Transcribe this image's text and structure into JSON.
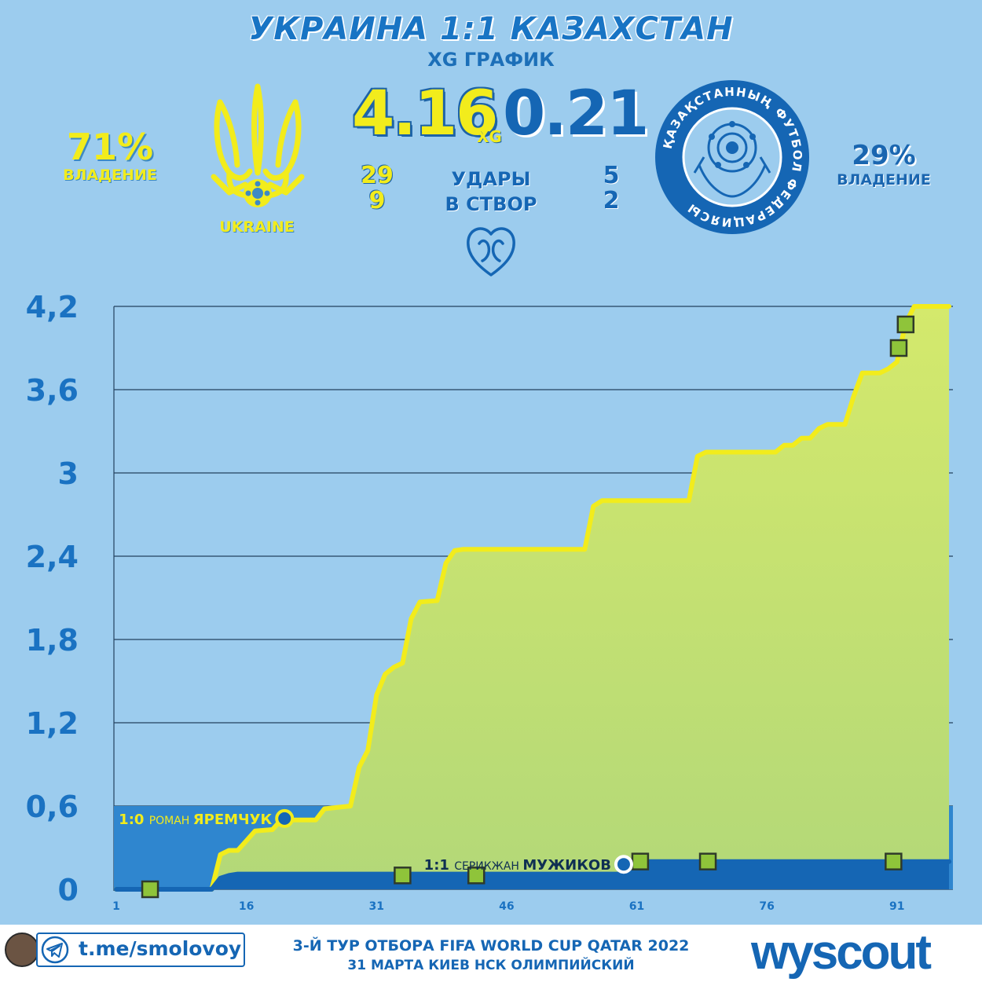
{
  "header": {
    "title": "УКРАИНА 1:1 КАЗАХСТАН",
    "subtitle": "XG ГРАФИК"
  },
  "home": {
    "name": "UKRAINE",
    "possession": "71%",
    "possession_label": "ВЛАДЕНИЕ",
    "xg": "4.16",
    "shots": "29",
    "on_target": "9",
    "color": "#f2ec1c"
  },
  "away": {
    "possession": "29%",
    "possession_label": "ВЛАДЕНИЕ",
    "xg": "0.21",
    "shots": "5",
    "on_target": "2",
    "color": "#1566b4",
    "crest_text": "ҚАЗАҚСТАННЫҢ ФУТБОЛ ФЕДЕРАЦИЯСЫ"
  },
  "stats": {
    "xg_label": "XG",
    "shots_label": "УДАРЫ",
    "on_target_label": "В СТВОР"
  },
  "chart_data": {
    "type": "line",
    "xlabel": "",
    "ylabel": "",
    "x_ticks": [
      1,
      16,
      31,
      46,
      61,
      76,
      91
    ],
    "y_ticks": [
      "0",
      "0,6",
      "1,2",
      "1,8",
      "2,4",
      "3",
      "3,6",
      "4,2"
    ],
    "y_tick_values": [
      0,
      0.6,
      1.2,
      1.8,
      2.4,
      3.0,
      3.6,
      4.2
    ],
    "xlim": [
      1,
      97
    ],
    "ylim": [
      0,
      4.2
    ],
    "grid": true,
    "series": [
      {
        "name": "Украина",
        "color": "#f2ec1c",
        "points": [
          [
            1,
            0.0
          ],
          [
            12,
            0.0
          ],
          [
            13,
            0.25
          ],
          [
            14,
            0.28
          ],
          [
            15,
            0.28
          ],
          [
            16,
            0.35
          ],
          [
            17,
            0.42
          ],
          [
            19,
            0.43
          ],
          [
            20,
            0.5
          ],
          [
            24,
            0.5
          ],
          [
            25,
            0.58
          ],
          [
            28,
            0.6
          ],
          [
            29,
            0.88
          ],
          [
            30,
            1.0
          ],
          [
            31,
            1.4
          ],
          [
            32,
            1.55
          ],
          [
            33,
            1.6
          ],
          [
            34,
            1.63
          ],
          [
            35,
            1.95
          ],
          [
            36,
            2.07
          ],
          [
            38,
            2.08
          ],
          [
            39,
            2.35
          ],
          [
            40,
            2.44
          ],
          [
            41,
            2.45
          ],
          [
            43,
            2.45
          ],
          [
            55,
            2.45
          ],
          [
            56,
            2.76
          ],
          [
            57,
            2.8
          ],
          [
            67,
            2.8
          ],
          [
            68,
            3.12
          ],
          [
            69,
            3.15
          ],
          [
            77,
            3.15
          ],
          [
            78,
            3.2
          ],
          [
            79,
            3.2
          ],
          [
            80,
            3.25
          ],
          [
            81,
            3.25
          ],
          [
            82,
            3.32
          ],
          [
            83,
            3.35
          ],
          [
            85,
            3.35
          ],
          [
            86,
            3.55
          ],
          [
            87,
            3.72
          ],
          [
            89,
            3.72
          ],
          [
            90,
            3.75
          ],
          [
            91,
            3.8
          ],
          [
            92,
            4.08
          ],
          [
            93,
            4.2
          ],
          [
            97,
            4.2
          ]
        ]
      },
      {
        "name": "Казахстан",
        "color": "#1566b4",
        "points": [
          [
            1,
            0.0
          ],
          [
            12,
            0.0
          ],
          [
            13,
            0.08
          ],
          [
            14,
            0.1
          ],
          [
            15,
            0.11
          ],
          [
            59,
            0.11
          ],
          [
            60,
            0.16
          ],
          [
            61,
            0.18
          ],
          [
            62,
            0.2
          ],
          [
            97,
            0.2
          ]
        ]
      }
    ],
    "shots_markers": [
      {
        "minute": 4.9,
        "xg": 0.0
      },
      {
        "minute": 34,
        "xg": 0.1
      },
      {
        "minute": 42.5,
        "xg": 0.1
      },
      {
        "minute": 61.4,
        "xg": 0.2
      },
      {
        "minute": 69.2,
        "xg": 0.2
      },
      {
        "minute": 90.6,
        "xg": 0.2
      },
      {
        "minute": 91.2,
        "xg": 3.9
      },
      {
        "minute": 92,
        "xg": 4.07
      }
    ],
    "goals": [
      {
        "minute": 20.4,
        "xg": 0.51,
        "score": "1:0",
        "first_name": "РОМАН",
        "last_name": "ЯРЕМЧУК",
        "team": "home"
      },
      {
        "minute": 59.5,
        "xg": 0.18,
        "score": "1:1",
        "first_name": "СЕРИКЖАН",
        "last_name": "МУЖИКОВ",
        "team": "away"
      }
    ]
  },
  "footer": {
    "telegram": "t.me/smolovoy",
    "line1": "3-Й ТУР ОТБОРА FIFA WORLD CUP QATAR 2022",
    "line2": "31 МАРТА КИЕВ НСК ОЛИМПИЙСКИЙ",
    "brand": "wyscout"
  }
}
